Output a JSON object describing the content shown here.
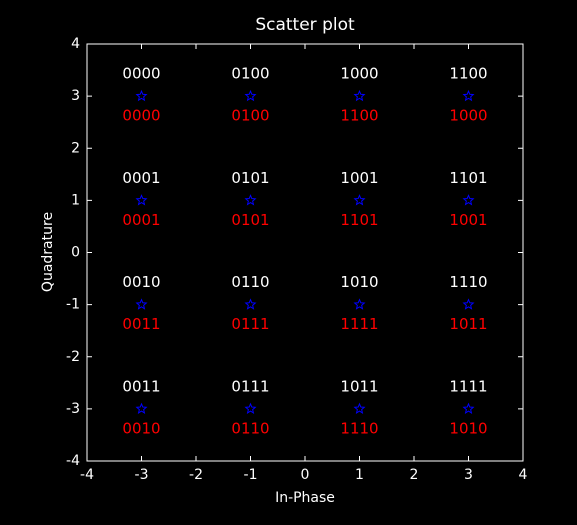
{
  "chart_data": {
    "type": "scatter",
    "title": "Scatter plot",
    "xlabel": "In-Phase",
    "ylabel": "Quadrature",
    "xlim": [
      -4,
      4
    ],
    "ylim": [
      -4,
      4
    ],
    "xticks": [
      -4,
      -3,
      -2,
      -1,
      0,
      1,
      2,
      3,
      4
    ],
    "yticks": [
      -4,
      -3,
      -2,
      -1,
      0,
      1,
      2,
      3,
      4
    ],
    "grid": false,
    "label_color": "#ffffff",
    "label_below_color": "#ff0000",
    "series": [
      {
        "color": "#0000ff",
        "marker": "star",
        "x": [
          -3,
          -1,
          1,
          3,
          -3,
          -1,
          1,
          3,
          -3,
          -1,
          1,
          3,
          -3,
          -1,
          1,
          3
        ],
        "values": [
          3,
          3,
          3,
          3,
          1,
          1,
          1,
          1,
          -1,
          -1,
          -1,
          -1,
          -3,
          -3,
          -3,
          -3
        ],
        "labels": [
          "0000",
          "0100",
          "1000",
          "1100",
          "0001",
          "0101",
          "1001",
          "1101",
          "0010",
          "0110",
          "1010",
          "1110",
          "0011",
          "0111",
          "1011",
          "1111"
        ],
        "labels_below": [
          "0000",
          "0100",
          "1100",
          "1000",
          "0001",
          "0101",
          "1101",
          "1001",
          "0011",
          "0111",
          "1111",
          "1011",
          "0010",
          "0110",
          "1110",
          "1010"
        ]
      }
    ]
  }
}
